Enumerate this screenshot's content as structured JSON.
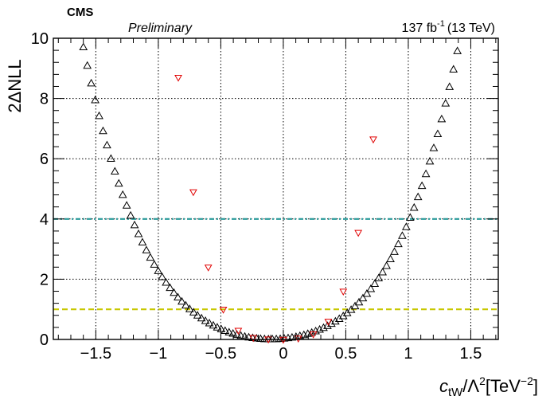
{
  "header": {
    "experiment": "CMS",
    "status": "Preliminary",
    "lumi": "137 fb",
    "lumi_exp": "-1",
    "energy": "(13 TeV)"
  },
  "chart_data": {
    "type": "scatter",
    "title": "",
    "xlabel": {
      "var": "c",
      "sub": "tW",
      "rest": "/Λ",
      "sup1": "2",
      "unit_open": "[TeV",
      "sup2": "−2",
      "unit_close": "]"
    },
    "ylabel": "2ΔNLL",
    "xlim": [
      -1.84,
      1.72
    ],
    "ylim": [
      0,
      10
    ],
    "xticks": [
      -1.5,
      -1,
      -0.5,
      0,
      0.5,
      1,
      1.5
    ],
    "xtick_labels": [
      "−1.5",
      "−1",
      "−0.5",
      "0",
      "0.5",
      "1",
      "1.5"
    ],
    "yticks": [
      0,
      2,
      4,
      6,
      8,
      10
    ],
    "ytick_labels": [
      "0",
      "2",
      "4",
      "6",
      "8",
      "10"
    ],
    "grid": true,
    "reference_lines": [
      {
        "y": 4,
        "color": "#2a9a9a",
        "style": "dash-dot"
      },
      {
        "y": 1,
        "color": "#c8c800",
        "style": "dashed"
      }
    ],
    "series": [
      {
        "marker": "open-triangle-up",
        "color": "#000000",
        "profile": {
          "x_min": -1.82,
          "x_max": 1.7,
          "step": 0.0315,
          "center": -0.1,
          "scale": 2.41
        }
      },
      {
        "marker": "open-triangle-down",
        "color": "#e00000",
        "x": [
          -0.84,
          -0.72,
          -0.6,
          -0.48,
          -0.36,
          -0.24,
          -0.12,
          0.0,
          0.12,
          0.24,
          0.36,
          0.48,
          0.6,
          0.72
        ],
        "y": [
          8.7,
          4.9,
          2.4,
          1.0,
          0.3,
          0.06,
          0.01,
          0.0,
          0.04,
          0.18,
          0.6,
          1.6,
          3.55,
          6.65
        ]
      }
    ]
  }
}
